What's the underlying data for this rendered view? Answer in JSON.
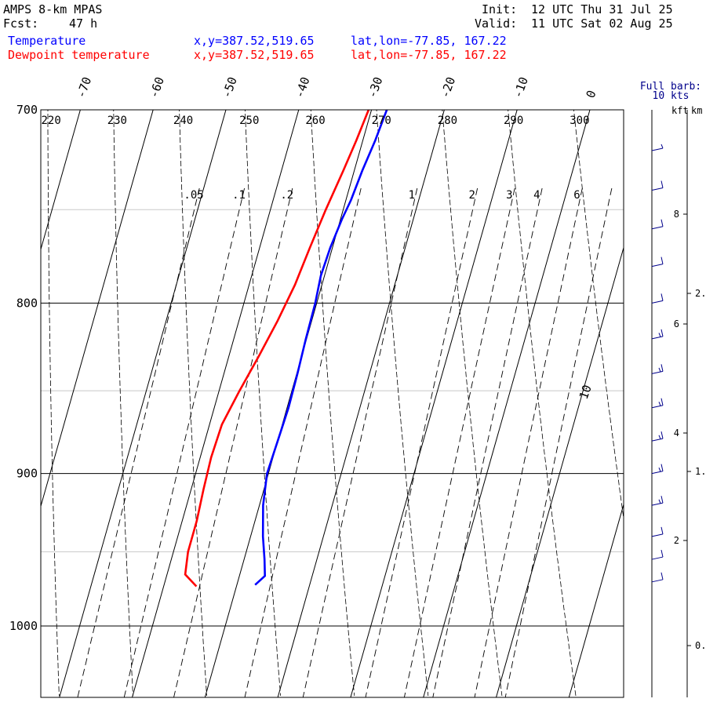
{
  "header": {
    "model": "AMPS 8-km MPAS",
    "fcst_label": "Fcst:",
    "fcst_value": "47 h",
    "init_label": "Init:",
    "init_value": "12 UTC Thu 31 Jul 25",
    "valid_label": "Valid:",
    "valid_value": "11 UTC Sat 02 Aug 25"
  },
  "legend": [
    {
      "name": "Temperature",
      "xy": "x,y=387.52,519.65",
      "latlon": "lat,lon=-77.85, 167.22",
      "color": "#0000ff"
    },
    {
      "name": "Dewpoint temperature",
      "xy": "x,y=387.52,519.65",
      "latlon": "lat,lon=-77.85, 167.22",
      "color": "#ff0000"
    }
  ],
  "wind_key": {
    "line1": "Full barb:",
    "line2": "10 kts",
    "kft": "kft",
    "km": "km"
  },
  "chart_data": {
    "type": "line",
    "title": "",
    "ylabel": "",
    "y_pressure_range_hPa": [
      700,
      1040
    ],
    "pressure_ticks": [
      "700",
      "800",
      "900",
      "1000"
    ],
    "isotherm_labels": [
      "-70",
      "-60",
      "-50",
      "-40",
      "-30",
      "-20",
      "-10",
      "0",
      "10"
    ],
    "dry_adiabat_labels": [
      "220",
      "230",
      "240",
      "250",
      "260",
      "270",
      "280",
      "290",
      "300"
    ],
    "mixing_ratio_labels": [
      ".05",
      ".1",
      ".2",
      "1",
      "2",
      "3",
      "4",
      "6"
    ],
    "height_kft_ticks": [
      "2",
      "4",
      "6",
      "8"
    ],
    "height_km_ticks": [
      "0.",
      "1.",
      "2."
    ],
    "grid": true,
    "series": [
      {
        "name": "Temperature",
        "color": "#0000ff",
        "points": [
          {
            "p": 972,
            "t": -27.5
          },
          {
            "p": 966,
            "t": -26.5
          },
          {
            "p": 955,
            "t": -27.2
          },
          {
            "p": 940,
            "t": -28.3
          },
          {
            "p": 920,
            "t": -29.5
          },
          {
            "p": 900,
            "t": -30.2
          },
          {
            "p": 880,
            "t": -30.0
          },
          {
            "p": 860,
            "t": -29.8
          },
          {
            "p": 840,
            "t": -29.9
          },
          {
            "p": 820,
            "t": -30.1
          },
          {
            "p": 800,
            "t": -30.2
          },
          {
            "p": 785,
            "t": -30.5
          },
          {
            "p": 770,
            "t": -30.3
          },
          {
            "p": 755,
            "t": -29.8
          },
          {
            "p": 745,
            "t": -29.3
          },
          {
            "p": 730,
            "t": -28.9
          },
          {
            "p": 715,
            "t": -28.3
          },
          {
            "p": 700,
            "t": -27.9
          }
        ]
      },
      {
        "name": "Dewpoint temperature",
        "color": "#ff0000",
        "points": [
          {
            "p": 973,
            "t": -35.5
          },
          {
            "p": 965,
            "t": -37.5
          },
          {
            "p": 950,
            "t": -38.0
          },
          {
            "p": 930,
            "t": -38.0
          },
          {
            "p": 910,
            "t": -38.3
          },
          {
            "p": 890,
            "t": -38.5
          },
          {
            "p": 870,
            "t": -38.3
          },
          {
            "p": 850,
            "t": -37.2
          },
          {
            "p": 830,
            "t": -35.9
          },
          {
            "p": 810,
            "t": -34.7
          },
          {
            "p": 790,
            "t": -33.7
          },
          {
            "p": 770,
            "t": -33.1
          },
          {
            "p": 750,
            "t": -32.4
          },
          {
            "p": 730,
            "t": -31.5
          },
          {
            "p": 715,
            "t": -30.9
          },
          {
            "p": 700,
            "t": -30.4
          }
        ]
      }
    ],
    "wind_profile": [
      {
        "p": 970,
        "speed_kts": 8
      },
      {
        "p": 955,
        "speed_kts": 10
      },
      {
        "p": 940,
        "speed_kts": 12
      },
      {
        "p": 920,
        "speed_kts": 14
      },
      {
        "p": 900,
        "speed_kts": 15
      },
      {
        "p": 880,
        "speed_kts": 15
      },
      {
        "p": 860,
        "speed_kts": 15
      },
      {
        "p": 840,
        "speed_kts": 15
      },
      {
        "p": 820,
        "speed_kts": 15
      },
      {
        "p": 800,
        "speed_kts": 10
      },
      {
        "p": 780,
        "speed_kts": 10
      },
      {
        "p": 760,
        "speed_kts": 10
      },
      {
        "p": 740,
        "speed_kts": 10
      },
      {
        "p": 720,
        "speed_kts": 5
      }
    ]
  }
}
